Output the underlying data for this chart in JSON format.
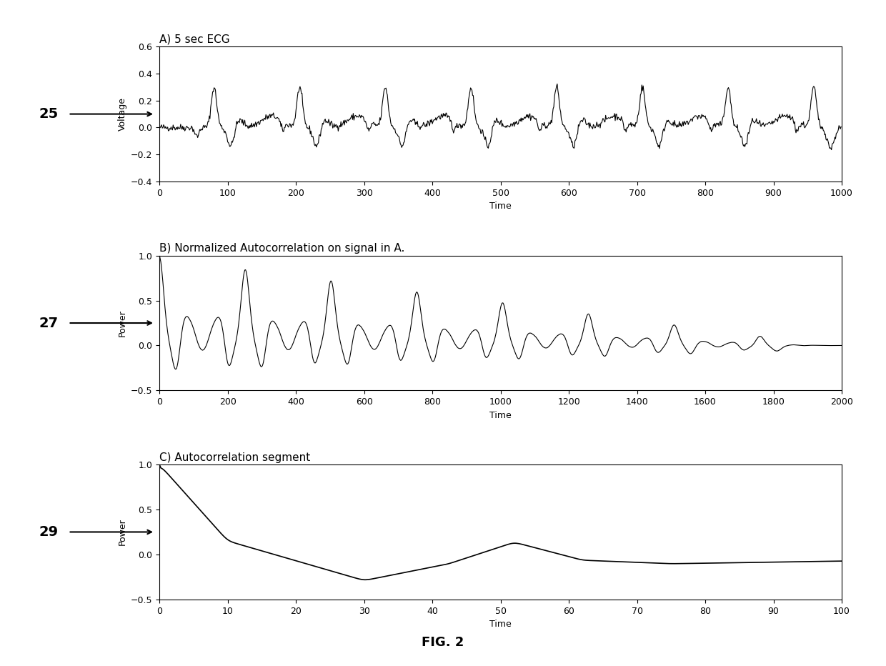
{
  "title_a": "A) 5 sec ECG",
  "title_b": "B) Normalized Autocorrelation on signal in A.",
  "title_c": "C) Autocorrelation segment",
  "fig_caption": "FIG. 2",
  "label_25": "25",
  "label_27": "27",
  "label_29": "29",
  "xlabel": "Time",
  "ylabel_a": "Voltage",
  "ylabel_b": "Power",
  "ylabel_c": "Power",
  "xlim_a": [
    0,
    1000
  ],
  "xlim_b": [
    0,
    2000
  ],
  "xlim_c": [
    0,
    100
  ],
  "ylim_a": [
    -0.4,
    0.6
  ],
  "ylim_b": [
    -0.5,
    1.0
  ],
  "ylim_c": [
    -0.5,
    1.0
  ],
  "yticks_a": [
    -0.4,
    -0.2,
    0,
    0.2,
    0.4,
    0.6
  ],
  "yticks_b": [
    -0.5,
    0,
    0.5,
    1
  ],
  "yticks_c": [
    -0.5,
    0,
    0.5,
    1
  ],
  "xticks_a": [
    0,
    100,
    200,
    300,
    400,
    500,
    600,
    700,
    800,
    900,
    1000
  ],
  "xticks_b": [
    0,
    200,
    400,
    600,
    800,
    1000,
    1200,
    1400,
    1600,
    1800,
    2000
  ],
  "xticks_c": [
    0,
    10,
    20,
    30,
    40,
    50,
    60,
    70,
    80,
    90,
    100
  ],
  "line_color": "#000000",
  "bg_color": "#ffffff",
  "title_fontsize": 11,
  "tick_fontsize": 9,
  "label_fontsize": 9
}
